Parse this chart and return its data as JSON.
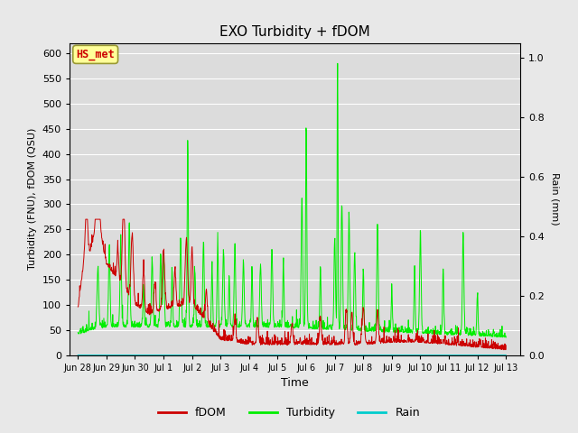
{
  "title": "EXO Turbidity + fDOM",
  "ylabel_left": "Turbidity (FNU), fDOM (QSU)",
  "ylabel_right": "Rain (mm)",
  "xlabel": "Time",
  "ylim_left": [
    0,
    620
  ],
  "ylim_right": [
    0,
    1.05
  ],
  "yticks_left": [
    0,
    50,
    100,
    150,
    200,
    250,
    300,
    350,
    400,
    450,
    500,
    550,
    600
  ],
  "yticks_right_vals": [
    0.0,
    0.2,
    0.4,
    0.6,
    0.8,
    1.0
  ],
  "yticks_right_labels": [
    "0.0",
    "0.2",
    "0.4",
    "0.6",
    "0.8",
    "1.0"
  ],
  "fig_bg": "#e8e8e8",
  "plot_bg": "#dcdcdc",
  "fdom_color": "#cc0000",
  "turbidity_color": "#00ee00",
  "rain_color": "#00cccc",
  "annotation_text": "HS_met",
  "annotation_box_facecolor": "#ffff99",
  "annotation_box_edgecolor": "#999933",
  "annotation_text_color": "#cc0000",
  "legend_fdom": "fDOM",
  "legend_turbidity": "Turbidity",
  "legend_rain": "Rain",
  "xtick_labels": [
    "Jun 28",
    "Jun 29",
    "Jun 30",
    "Jul 1",
    "Jul 2",
    "Jul 3",
    "Jul 4",
    "Jul 5",
    "Jul 6",
    "Jul 7",
    "Jul 8",
    "Jul 9",
    "Jul 10",
    "Jul 11",
    "Jul 12",
    "Jul 13"
  ],
  "xtick_positions": [
    0,
    1,
    2,
    3,
    4,
    5,
    6,
    7,
    8,
    9,
    10,
    11,
    12,
    13,
    14,
    15
  ],
  "grid_color": "white",
  "grid_linewidth": 0.8,
  "line_linewidth": 0.7
}
